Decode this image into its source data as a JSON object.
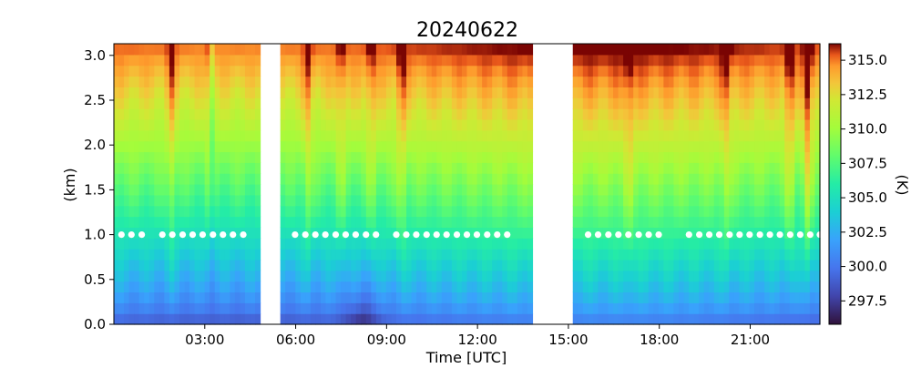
{
  "chart_data": {
    "type": "heatmap",
    "title": "20240622",
    "xlabel": "Time [UTC]",
    "ylabel": "(km)",
    "colorbar_label": "(K)",
    "colormap": "turbo",
    "x_unit": "hours UTC",
    "xlim": [
      0.0,
      23.3
    ],
    "ylim": [
      0.0,
      3.13
    ],
    "clim": [
      295.8,
      316.2
    ],
    "x_ticks": [
      3,
      6,
      9,
      12,
      15,
      18,
      21
    ],
    "x_tick_labels": [
      "03:00",
      "06:00",
      "09:00",
      "12:00",
      "15:00",
      "18:00",
      "21:00"
    ],
    "y_ticks": [
      0.0,
      0.5,
      1.0,
      1.5,
      2.0,
      2.5,
      3.0
    ],
    "y_tick_labels": [
      "0.0",
      "0.5",
      "1.0",
      "1.5",
      "2.0",
      "2.5",
      "3.0"
    ],
    "colorbar_ticks": [
      297.5,
      300.0,
      302.5,
      305.0,
      307.5,
      310.0,
      312.5,
      315.0
    ],
    "colorbar_tick_labels": [
      "297.5",
      "300.0",
      "302.5",
      "305.0",
      "307.5",
      "310.0",
      "312.5",
      "315.0"
    ],
    "data_gaps_hours": [
      [
        4.8,
        5.5
      ],
      [
        13.8,
        15.2
      ]
    ],
    "warm_columns_hours": [
      1.9,
      3.2,
      6.4,
      7.5,
      8.5,
      9.5,
      17.0,
      20.2,
      22.3,
      22.9
    ],
    "warm_column_strength": [
      2.0,
      1.5,
      2.0,
      1.5,
      1.5,
      2.0,
      1.5,
      1.5,
      2.5,
      3.5
    ],
    "green_streak_hours": [
      3.25
    ],
    "cold_surface_hours": [
      8.2
    ],
    "marker_height_km": 1.0,
    "marker_times_hours": [
      0.25,
      0.58,
      0.92,
      1.6,
      1.93,
      2.27,
      2.6,
      2.93,
      3.27,
      3.6,
      3.93,
      4.27,
      5.98,
      6.32,
      6.65,
      6.98,
      7.32,
      7.65,
      7.98,
      8.32,
      8.65,
      9.32,
      9.65,
      9.98,
      10.32,
      10.65,
      10.98,
      11.32,
      11.65,
      11.98,
      12.32,
      12.65,
      12.98,
      15.65,
      15.98,
      16.32,
      16.65,
      16.98,
      17.32,
      17.65,
      17.98,
      18.98,
      19.32,
      19.65,
      19.98,
      20.32,
      20.65,
      20.98,
      21.32,
      21.65,
      21.98,
      22.32,
      22.65,
      22.98,
      23.3
    ]
  }
}
